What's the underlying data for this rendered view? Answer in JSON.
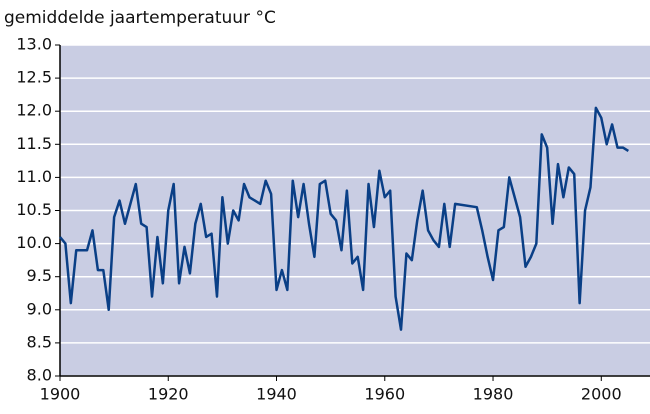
{
  "chart_data": {
    "type": "line",
    "title": "gemiddelde jaartemperatuur °C",
    "x": [
      1900,
      1901,
      1902,
      1903,
      1904,
      1905,
      1906,
      1907,
      1908,
      1909,
      1910,
      1911,
      1912,
      1913,
      1914,
      1915,
      1916,
      1917,
      1918,
      1919,
      1920,
      1921,
      1922,
      1923,
      1924,
      1925,
      1926,
      1927,
      1928,
      1929,
      1930,
      1931,
      1932,
      1933,
      1934,
      1935,
      1936,
      1937,
      1938,
      1939,
      1940,
      1941,
      1942,
      1943,
      1944,
      1945,
      1946,
      1947,
      1948,
      1949,
      1950,
      1951,
      1952,
      1953,
      1954,
      1955,
      1956,
      1957,
      1958,
      1959,
      1960,
      1961,
      1962,
      1963,
      1964,
      1965,
      1966,
      1967,
      1968,
      1969,
      1970,
      1971,
      1972,
      1973,
      1977,
      1978,
      1979,
      1980,
      1981,
      1982,
      1983,
      1984,
      1985,
      1986,
      1987,
      1988,
      1989,
      1990,
      1991,
      1992,
      1993,
      1994,
      1995,
      1996,
      1997,
      1998,
      1999,
      2000,
      2001,
      2002,
      2003,
      2004,
      2005
    ],
    "series": [
      {
        "color": "#0a3f86",
        "values": [
          10.1,
          10.0,
          9.1,
          9.9,
          9.9,
          9.9,
          10.2,
          9.6,
          9.6,
          9.0,
          10.4,
          10.65,
          10.3,
          10.6,
          10.9,
          10.3,
          10.25,
          9.2,
          10.1,
          9.4,
          10.5,
          10.9,
          9.4,
          9.95,
          9.55,
          10.3,
          10.6,
          10.1,
          10.15,
          9.2,
          10.7,
          10.0,
          10.5,
          10.35,
          10.9,
          10.7,
          10.65,
          10.6,
          10.95,
          10.75,
          9.3,
          9.6,
          9.3,
          10.95,
          10.4,
          10.9,
          10.3,
          9.8,
          10.9,
          10.95,
          10.45,
          10.35,
          9.9,
          10.8,
          9.7,
          9.8,
          9.3,
          10.9,
          10.25,
          11.1,
          10.7,
          10.8,
          9.2,
          8.7,
          9.85,
          9.75,
          10.35,
          10.8,
          10.2,
          10.05,
          9.95,
          10.6,
          9.95,
          10.6,
          10.55,
          10.2,
          9.8,
          9.45,
          10.2,
          10.25,
          11.0,
          10.7,
          10.4,
          9.65,
          9.8,
          10.0,
          11.65,
          11.45,
          10.3,
          11.2,
          10.7,
          11.15,
          11.05,
          9.1,
          10.5,
          10.85,
          12.05,
          11.9,
          11.5,
          11.8,
          11.45,
          11.45,
          11.4
        ]
      }
    ],
    "xlim": [
      1900,
      2009
    ],
    "xticks": [
      1900,
      1920,
      1940,
      1960,
      1980,
      2000
    ],
    "ylim": [
      8,
      13
    ],
    "yticks": [
      {
        "value": 8,
        "label": "8.0"
      },
      {
        "value": 8.5,
        "label": "8.5"
      },
      {
        "value": 9,
        "label": "9.0"
      },
      {
        "value": 9.5,
        "label": "9.5"
      },
      {
        "value": 10,
        "label": "10.0"
      },
      {
        "value": 10.5,
        "label": "10.5"
      },
      {
        "value": 11,
        "label": "11.0"
      },
      {
        "value": 11.5,
        "label": "11.5"
      },
      {
        "value": 12,
        "label": "12.0"
      },
      {
        "value": 12.5,
        "label": "12.5"
      },
      {
        "value": 13,
        "label": "13.0"
      }
    ],
    "grid": true
  }
}
